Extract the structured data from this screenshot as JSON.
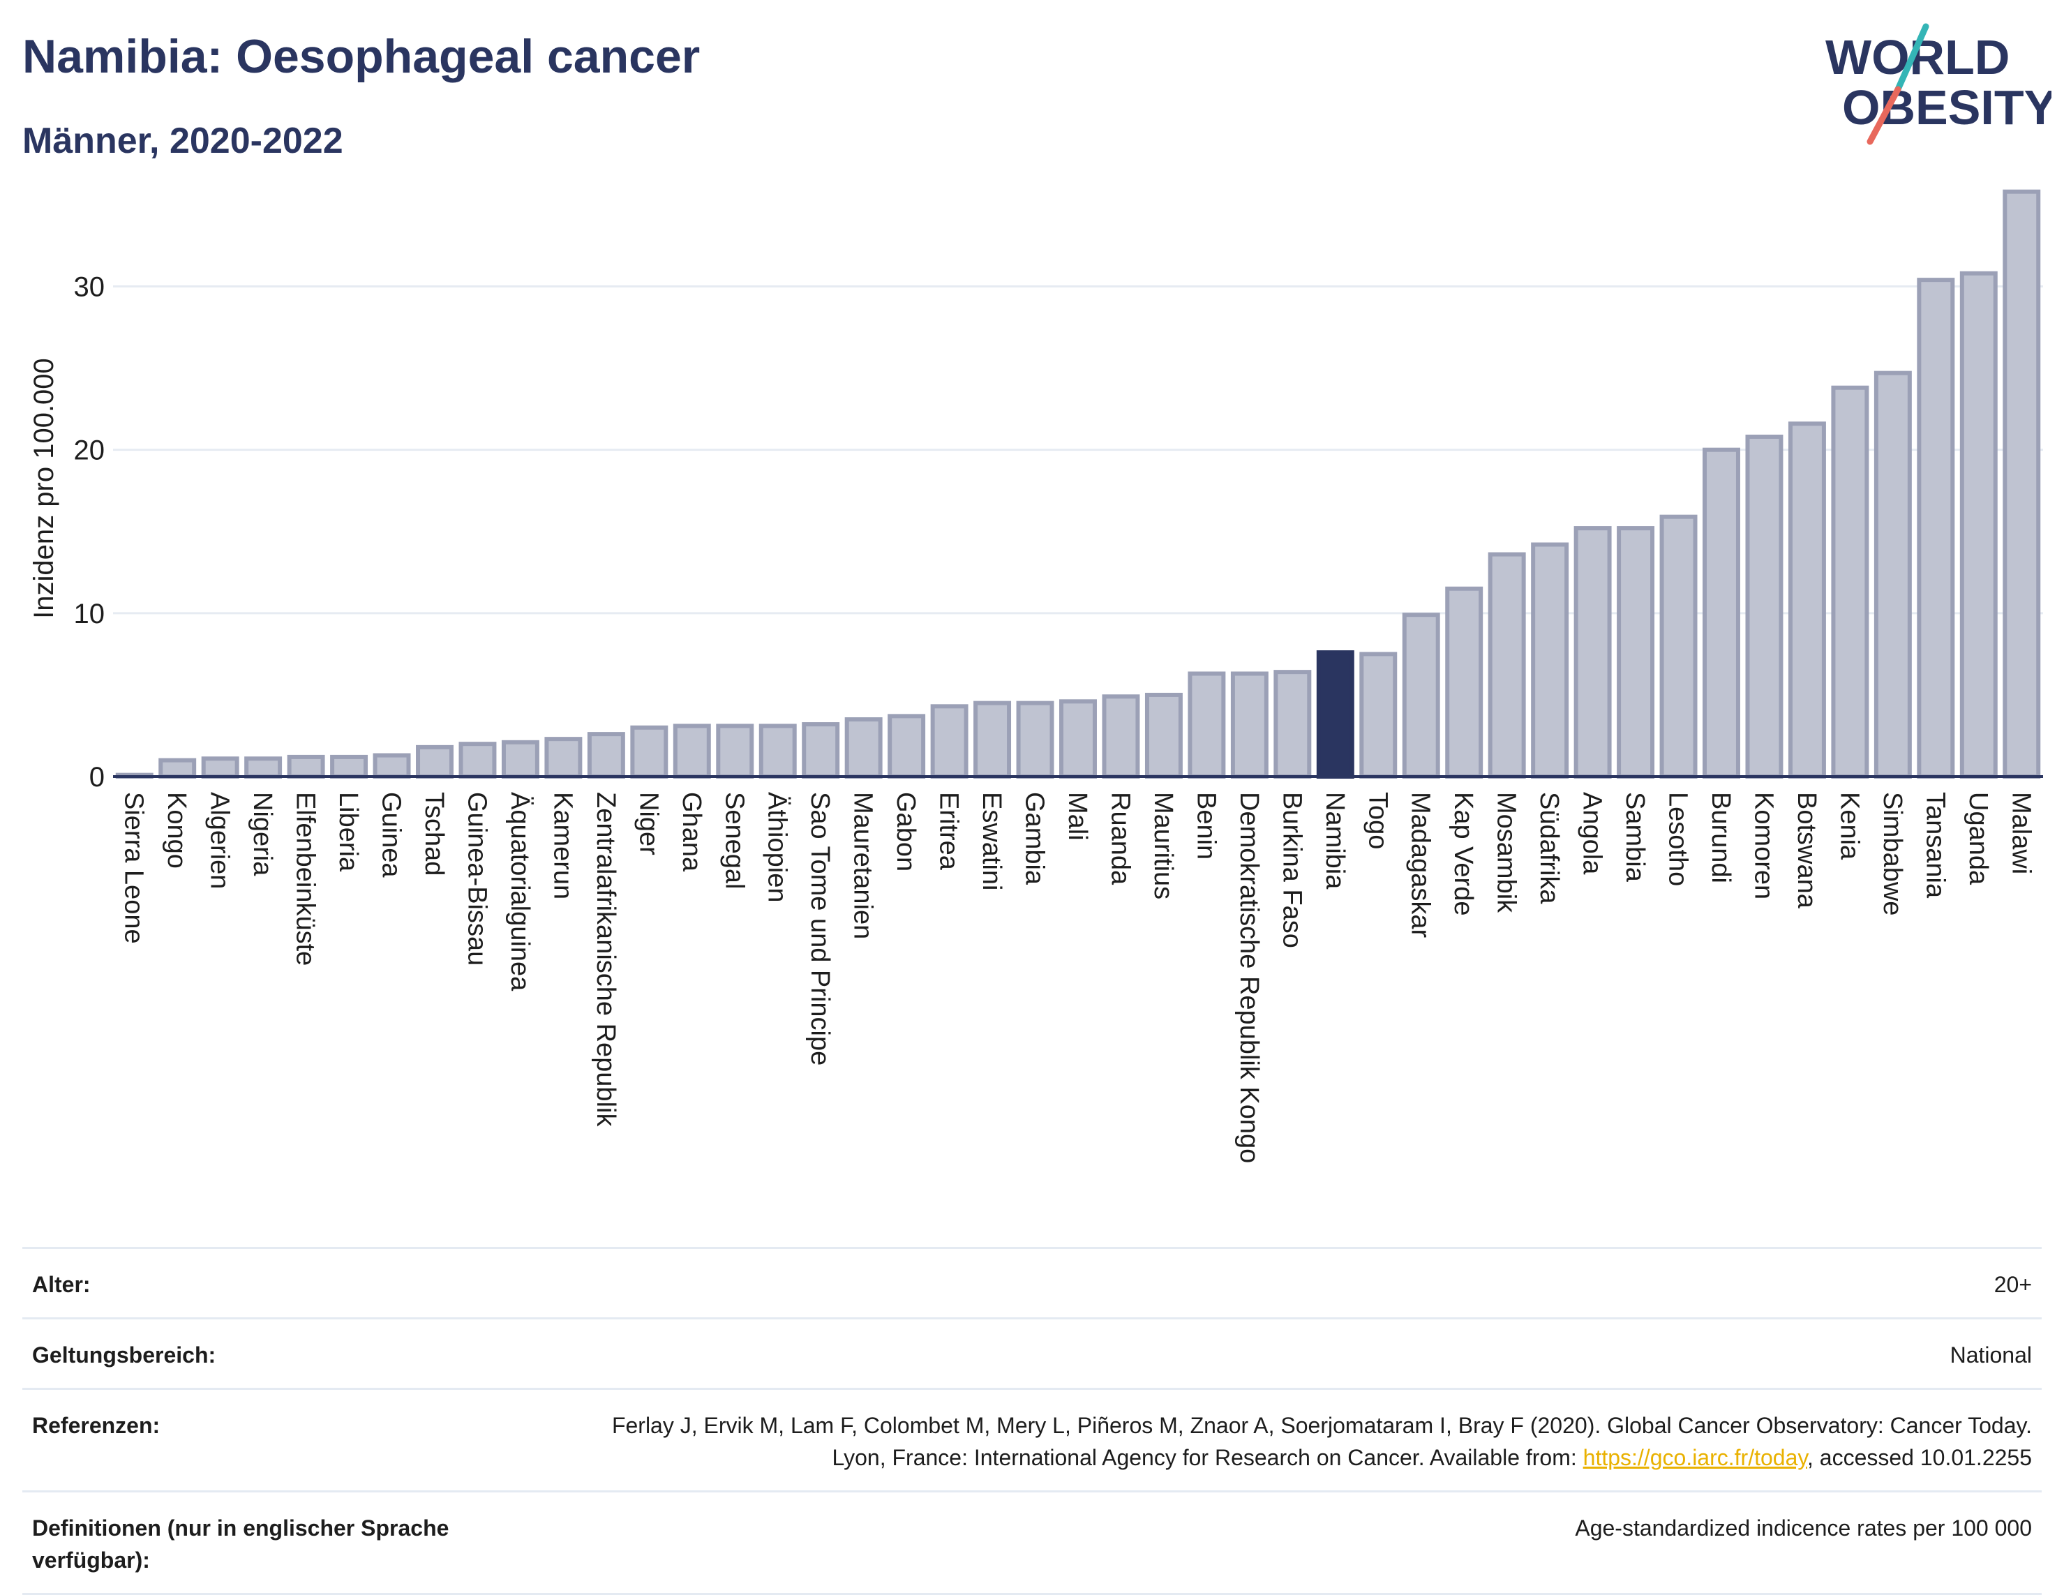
{
  "header": {
    "title": "Namibia: Oesophageal cancer",
    "subtitle": "Männer, 2020-2022"
  },
  "logo": {
    "line1": "WORLD",
    "line2": "OBESITY"
  },
  "colors": {
    "bar_fill": "#bfc3d1",
    "bar_stroke": "#9ba0b6",
    "highlight": "#2a3560",
    "grid": "#e6ebf2",
    "axis": "#2a3560",
    "logo_teal": "#34b5b6",
    "logo_coral": "#e8685c",
    "link": "#e9b100"
  },
  "chart_data": {
    "type": "bar",
    "ylabel": "Inzidenz pro 100.000",
    "ylim": [
      0,
      36
    ],
    "yticks": [
      0,
      10,
      20,
      30
    ],
    "grid": true,
    "highlight": "Namibia",
    "categories": [
      "Sierra Leone",
      "Kongo",
      "Algerien",
      "Nigeria",
      "Elfenbeinküste",
      "Liberia",
      "Guinea",
      "Tschad",
      "Guinea-Bissau",
      "Äquatorialguinea",
      "Kamerun",
      "Zentralafrikanische Republik",
      "Niger",
      "Ghana",
      "Senegal",
      "Äthiopien",
      "Sao Tome und Principe",
      "Mauretanien",
      "Gabon",
      "Eritrea",
      "Eswatini",
      "Gambia",
      "Mali",
      "Ruanda",
      "Mauritius",
      "Benin",
      "Demokratische Republik Kongo",
      "Burkina Faso",
      "Namibia",
      "Togo",
      "Madagaskar",
      "Kap Verde",
      "Mosambik",
      "Südafrika",
      "Angola",
      "Sambia",
      "Lesotho",
      "Burundi",
      "Komoren",
      "Botswana",
      "Kenia",
      "Simbabwe",
      "Tansania",
      "Uganda",
      "Malawi"
    ],
    "values": [
      0.1,
      1.0,
      1.1,
      1.1,
      1.2,
      1.2,
      1.3,
      1.8,
      2.0,
      2.1,
      2.3,
      2.6,
      3.0,
      3.1,
      3.1,
      3.1,
      3.2,
      3.5,
      3.7,
      4.3,
      4.5,
      4.5,
      4.6,
      4.9,
      5.0,
      6.3,
      6.3,
      6.4,
      7.6,
      7.5,
      9.9,
      11.5,
      13.6,
      14.2,
      15.2,
      15.2,
      15.9,
      20.0,
      20.8,
      21.6,
      23.8,
      24.7,
      30.4,
      30.8,
      35.8
    ]
  },
  "meta": {
    "age_label": "Alter:",
    "age_value": "20+",
    "scope_label": "Geltungsbereich:",
    "scope_value": "National",
    "refs_label": "Referenzen:",
    "refs_text_1": "Ferlay J, Ervik M, Lam F, Colombet M, Mery L, Piñeros M, Znaor A, Soerjomataram I, Bray F (2020). Global Cancer Observatory: Cancer Today. Lyon, France: International Agency for Research on Cancer. Available from: ",
    "refs_link": "https://gco.iarc.fr/today",
    "refs_text_2": ", accessed 10.01.2255",
    "defs_label": "Definitionen (nur in englischer Sprache verfügbar):",
    "defs_value": "Age-standardized indicence rates per 100 000"
  }
}
